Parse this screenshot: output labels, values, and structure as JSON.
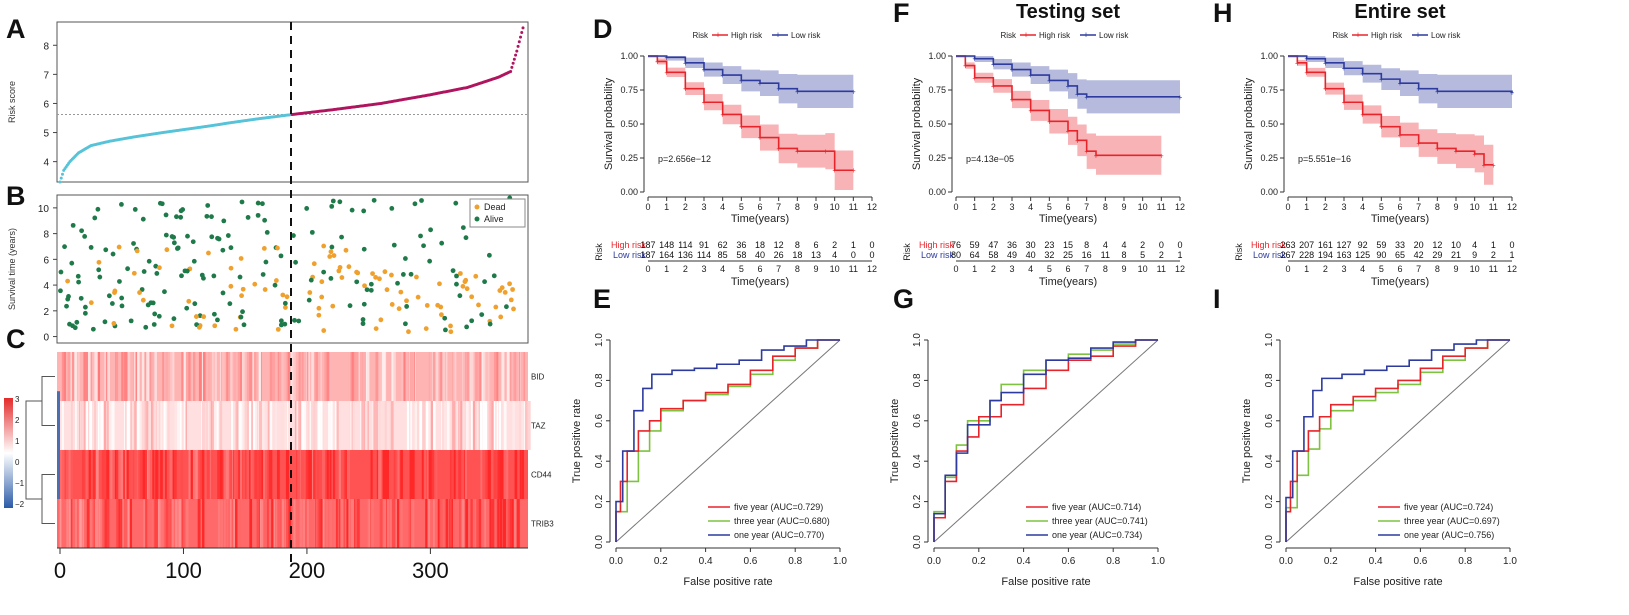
{
  "colors": {
    "high": "#e8242b",
    "low": "#2d3b9e",
    "cyan": "#56c3d9",
    "magenta": "#b0155f",
    "dead": "#f0a02c",
    "alive": "#1f7a4a",
    "five": "#e8242b",
    "three": "#7fc241",
    "one": "#2d3b9e"
  },
  "panel_labels": [
    "A",
    "B",
    "C",
    "D",
    "E",
    "F",
    "G",
    "H",
    "I"
  ],
  "chart_data": [
    {
      "panel": "A",
      "type": "scatter",
      "ylabel": "Risk score",
      "yticks": [
        4,
        5,
        6,
        7,
        8
      ],
      "ylim": [
        3.3,
        8.8
      ],
      "xlim": [
        0,
        375
      ],
      "cutoff_x": 188,
      "cutoff_y": 5.62,
      "curve": [
        [
          0,
          3.3
        ],
        [
          3,
          3.7
        ],
        [
          8,
          4.0
        ],
        [
          15,
          4.3
        ],
        [
          25,
          4.55
        ],
        [
          40,
          4.7
        ],
        [
          60,
          4.85
        ],
        [
          80,
          4.98
        ],
        [
          100,
          5.1
        ],
        [
          120,
          5.22
        ],
        [
          140,
          5.35
        ],
        [
          160,
          5.47
        ],
        [
          188,
          5.62
        ],
        [
          220,
          5.78
        ],
        [
          260,
          6.0
        ],
        [
          300,
          6.3
        ],
        [
          330,
          6.55
        ],
        [
          355,
          6.9
        ],
        [
          365,
          7.1
        ],
        [
          370,
          7.8
        ],
        [
          375,
          8.6
        ]
      ]
    },
    {
      "panel": "B",
      "type": "scatter",
      "ylabel": "Survival time (years)",
      "yticks": [
        0,
        2,
        4,
        6,
        8,
        10
      ],
      "ylim": [
        -0.5,
        11
      ],
      "xlim": [
        0,
        375
      ],
      "cutoff_x": 188,
      "legend": [
        "Dead",
        "Alive"
      ]
    },
    {
      "panel": "C",
      "type": "heatmap",
      "genes": [
        "BID",
        "TAZ",
        "CD44",
        "TRIB3"
      ],
      "colorbar_ticks": [
        "3",
        "2",
        "1",
        "0",
        "−1",
        "−2"
      ],
      "xticks": [
        0,
        100,
        200,
        300
      ],
      "xlim": [
        0,
        375
      ],
      "cutoff_x": 188
    },
    {
      "panel": "D",
      "type": "line",
      "title": "",
      "legend_title": "Risk",
      "legend": [
        "High risk",
        "Low risk"
      ],
      "xlabel": "Time(years)",
      "ylabel": "Survival probability",
      "yticks": [
        "0.00",
        "0.25",
        "0.50",
        "0.75",
        "1.00"
      ],
      "xticks": [
        0,
        1,
        2,
        3,
        4,
        5,
        6,
        7,
        8,
        9,
        10,
        11,
        12
      ],
      "ylim": [
        0,
        1
      ],
      "xlim": [
        0,
        12
      ],
      "pvalue": "p=2.656e−12",
      "high": [
        [
          0,
          1
        ],
        [
          0.5,
          0.96
        ],
        [
          1,
          0.88
        ],
        [
          2,
          0.76
        ],
        [
          3,
          0.66
        ],
        [
          4,
          0.57
        ],
        [
          5,
          0.48
        ],
        [
          6,
          0.4
        ],
        [
          7,
          0.32
        ],
        [
          8,
          0.3
        ],
        [
          9.5,
          0.3
        ],
        [
          10,
          0.16
        ],
        [
          11,
          0.16
        ]
      ],
      "low": [
        [
          0,
          1
        ],
        [
          1,
          0.99
        ],
        [
          2,
          0.95
        ],
        [
          3,
          0.9
        ],
        [
          4,
          0.86
        ],
        [
          5,
          0.82
        ],
        [
          6,
          0.8
        ],
        [
          7,
          0.76
        ],
        [
          8,
          0.74
        ],
        [
          11,
          0.74
        ]
      ],
      "risk_table": {
        "label": "Risk",
        "high_label": "High risk",
        "low_label": "Low risk",
        "high": [
          "187",
          "148",
          "114",
          "91",
          "62",
          "36",
          "18",
          "12",
          "8",
          "6",
          "2",
          "1",
          "0"
        ],
        "low": [
          "187",
          "164",
          "136",
          "114",
          "85",
          "58",
          "40",
          "26",
          "18",
          "13",
          "4",
          "0",
          "0"
        ]
      }
    },
    {
      "panel": "E",
      "type": "line",
      "xlabel": "False positive rate",
      "ylabel": "True positive rate",
      "ticks": [
        "0.0",
        "0.2",
        "0.4",
        "0.6",
        "0.8",
        "1.0"
      ],
      "legend": [
        "five year (AUC=0.729)",
        "three year (AUC=0.680)",
        "one year (AUC=0.770)"
      ],
      "five": [
        [
          0,
          0
        ],
        [
          0.02,
          0.15
        ],
        [
          0.05,
          0.3
        ],
        [
          0.1,
          0.45
        ],
        [
          0.15,
          0.55
        ],
        [
          0.2,
          0.6
        ],
        [
          0.3,
          0.66
        ],
        [
          0.4,
          0.7
        ],
        [
          0.5,
          0.74
        ],
        [
          0.6,
          0.78
        ],
        [
          0.7,
          0.85
        ],
        [
          0.8,
          0.92
        ],
        [
          0.9,
          0.96
        ],
        [
          1,
          1
        ]
      ],
      "three": [
        [
          0,
          0
        ],
        [
          0.05,
          0.15
        ],
        [
          0.1,
          0.3
        ],
        [
          0.15,
          0.45
        ],
        [
          0.2,
          0.55
        ],
        [
          0.3,
          0.65
        ],
        [
          0.4,
          0.7
        ],
        [
          0.5,
          0.73
        ],
        [
          0.6,
          0.77
        ],
        [
          0.7,
          0.83
        ],
        [
          0.8,
          0.9
        ],
        [
          0.9,
          0.96
        ],
        [
          1,
          1
        ]
      ],
      "one": [
        [
          0,
          0
        ],
        [
          0.03,
          0.2
        ],
        [
          0.08,
          0.45
        ],
        [
          0.12,
          0.65
        ],
        [
          0.16,
          0.76
        ],
        [
          0.25,
          0.83
        ],
        [
          0.35,
          0.85
        ],
        [
          0.45,
          0.86
        ],
        [
          0.55,
          0.88
        ],
        [
          0.65,
          0.9
        ],
        [
          0.75,
          0.95
        ],
        [
          0.85,
          0.97
        ],
        [
          1,
          1
        ]
      ]
    },
    {
      "panel": "F",
      "type": "line",
      "title": "Testing set",
      "legend_title": "Risk",
      "legend": [
        "High risk",
        "Low risk"
      ],
      "xlabel": "Time(years)",
      "ylabel": "Survival probability",
      "yticks": [
        "0.00",
        "0.25",
        "0.50",
        "0.75",
        "1.00"
      ],
      "xticks": [
        0,
        1,
        2,
        3,
        4,
        5,
        6,
        7,
        8,
        9,
        10,
        11,
        12
      ],
      "ylim": [
        0,
        1
      ],
      "xlim": [
        0,
        12
      ],
      "pvalue": "p=4.13e−05",
      "high": [
        [
          0,
          1
        ],
        [
          0.5,
          0.93
        ],
        [
          1,
          0.84
        ],
        [
          2,
          0.78
        ],
        [
          3,
          0.68
        ],
        [
          4,
          0.6
        ],
        [
          5,
          0.52
        ],
        [
          6,
          0.45
        ],
        [
          6.5,
          0.38
        ],
        [
          7,
          0.3
        ],
        [
          7.5,
          0.27
        ],
        [
          11,
          0.27
        ]
      ],
      "low": [
        [
          0,
          1
        ],
        [
          1,
          0.98
        ],
        [
          2,
          0.94
        ],
        [
          3,
          0.9
        ],
        [
          4,
          0.86
        ],
        [
          5,
          0.82
        ],
        [
          6,
          0.78
        ],
        [
          6.5,
          0.72
        ],
        [
          7,
          0.7
        ],
        [
          12,
          0.7
        ]
      ],
      "risk_table": {
        "label": "Risk",
        "high_label": "High risk",
        "low_label": "Low risk",
        "high": [
          "76",
          "59",
          "47",
          "36",
          "30",
          "23",
          "15",
          "8",
          "4",
          "4",
          "2",
          "0",
          "0"
        ],
        "low": [
          "80",
          "64",
          "58",
          "49",
          "40",
          "32",
          "25",
          "16",
          "11",
          "8",
          "5",
          "2",
          "1"
        ]
      }
    },
    {
      "panel": "G",
      "type": "line",
      "xlabel": "False positive rate",
      "ylabel": "True positive rate",
      "ticks": [
        "0.0",
        "0.2",
        "0.4",
        "0.6",
        "0.8",
        "1.0"
      ],
      "legend": [
        "five year (AUC=0.714)",
        "three year (AUC=0.741)",
        "one year (AUC=0.734)"
      ],
      "five": [
        [
          0,
          0
        ],
        [
          0.05,
          0.12
        ],
        [
          0.1,
          0.3
        ],
        [
          0.15,
          0.45
        ],
        [
          0.2,
          0.52
        ],
        [
          0.3,
          0.62
        ],
        [
          0.4,
          0.68
        ],
        [
          0.5,
          0.76
        ],
        [
          0.6,
          0.85
        ],
        [
          0.7,
          0.9
        ],
        [
          0.8,
          0.92
        ],
        [
          0.9,
          0.97
        ],
        [
          1,
          1
        ]
      ],
      "three": [
        [
          0,
          0
        ],
        [
          0.05,
          0.15
        ],
        [
          0.1,
          0.32
        ],
        [
          0.15,
          0.48
        ],
        [
          0.25,
          0.6
        ],
        [
          0.3,
          0.7
        ],
        [
          0.4,
          0.78
        ],
        [
          0.5,
          0.85
        ],
        [
          0.6,
          0.9
        ],
        [
          0.7,
          0.93
        ],
        [
          0.8,
          0.95
        ],
        [
          0.9,
          0.98
        ],
        [
          1,
          1
        ]
      ],
      "one": [
        [
          0,
          0
        ],
        [
          0.05,
          0.14
        ],
        [
          0.1,
          0.33
        ],
        [
          0.15,
          0.44
        ],
        [
          0.25,
          0.58
        ],
        [
          0.3,
          0.7
        ],
        [
          0.4,
          0.74
        ],
        [
          0.5,
          0.83
        ],
        [
          0.6,
          0.9
        ],
        [
          0.7,
          0.91
        ],
        [
          0.8,
          0.96
        ],
        [
          0.9,
          0.99
        ],
        [
          1,
          1
        ]
      ]
    },
    {
      "panel": "H",
      "type": "line",
      "title": "Entire set",
      "legend_title": "Risk",
      "legend": [
        "High risk",
        "Low risk"
      ],
      "xlabel": "Time(years)",
      "ylabel": "Survival probability",
      "yticks": [
        "0.00",
        "0.25",
        "0.50",
        "0.75",
        "1.00"
      ],
      "xticks": [
        0,
        1,
        2,
        3,
        4,
        5,
        6,
        7,
        8,
        9,
        10,
        11,
        12
      ],
      "ylim": [
        0,
        1
      ],
      "xlim": [
        0,
        12
      ],
      "pvalue": "p=5.551e−16",
      "high": [
        [
          0,
          1
        ],
        [
          0.5,
          0.95
        ],
        [
          1,
          0.88
        ],
        [
          2,
          0.76
        ],
        [
          3,
          0.66
        ],
        [
          4,
          0.57
        ],
        [
          5,
          0.48
        ],
        [
          6,
          0.42
        ],
        [
          7,
          0.36
        ],
        [
          8,
          0.32
        ],
        [
          9,
          0.3
        ],
        [
          10,
          0.28
        ],
        [
          10.5,
          0.2
        ],
        [
          11,
          0.2
        ]
      ],
      "low": [
        [
          0,
          1
        ],
        [
          1,
          0.98
        ],
        [
          2,
          0.95
        ],
        [
          3,
          0.91
        ],
        [
          4,
          0.87
        ],
        [
          5,
          0.83
        ],
        [
          6,
          0.8
        ],
        [
          7,
          0.76
        ],
        [
          8,
          0.74
        ],
        [
          12,
          0.73
        ]
      ],
      "risk_table": {
        "label": "Risk",
        "high_label": "High risk",
        "low_label": "Low risk",
        "high": [
          "263",
          "207",
          "161",
          "127",
          "92",
          "59",
          "33",
          "20",
          "12",
          "10",
          "4",
          "1",
          "0"
        ],
        "low": [
          "267",
          "228",
          "194",
          "163",
          "125",
          "90",
          "65",
          "42",
          "29",
          "21",
          "9",
          "2",
          "1"
        ]
      }
    },
    {
      "panel": "I",
      "type": "line",
      "xlabel": "False positive rate",
      "ylabel": "True positive rate",
      "ticks": [
        "0.0",
        "0.2",
        "0.4",
        "0.6",
        "0.8",
        "1.0"
      ],
      "legend": [
        "five year (AUC=0.724)",
        "three year (AUC=0.697)",
        "one year (AUC=0.756)"
      ],
      "five": [
        [
          0,
          0
        ],
        [
          0.02,
          0.15
        ],
        [
          0.05,
          0.3
        ],
        [
          0.1,
          0.45
        ],
        [
          0.15,
          0.55
        ],
        [
          0.2,
          0.62
        ],
        [
          0.3,
          0.68
        ],
        [
          0.4,
          0.72
        ],
        [
          0.5,
          0.76
        ],
        [
          0.6,
          0.8
        ],
        [
          0.7,
          0.86
        ],
        [
          0.8,
          0.92
        ],
        [
          0.9,
          0.96
        ],
        [
          1,
          1
        ]
      ],
      "three": [
        [
          0,
          0
        ],
        [
          0.05,
          0.17
        ],
        [
          0.1,
          0.33
        ],
        [
          0.15,
          0.46
        ],
        [
          0.2,
          0.56
        ],
        [
          0.3,
          0.65
        ],
        [
          0.4,
          0.7
        ],
        [
          0.5,
          0.74
        ],
        [
          0.6,
          0.78
        ],
        [
          0.7,
          0.84
        ],
        [
          0.8,
          0.9
        ],
        [
          0.9,
          0.96
        ],
        [
          1,
          1
        ]
      ],
      "one": [
        [
          0,
          0
        ],
        [
          0.03,
          0.22
        ],
        [
          0.08,
          0.45
        ],
        [
          0.12,
          0.62
        ],
        [
          0.16,
          0.75
        ],
        [
          0.25,
          0.81
        ],
        [
          0.35,
          0.83
        ],
        [
          0.45,
          0.85
        ],
        [
          0.55,
          0.87
        ],
        [
          0.65,
          0.9
        ],
        [
          0.75,
          0.95
        ],
        [
          0.85,
          0.98
        ],
        [
          1,
          1
        ]
      ]
    }
  ]
}
